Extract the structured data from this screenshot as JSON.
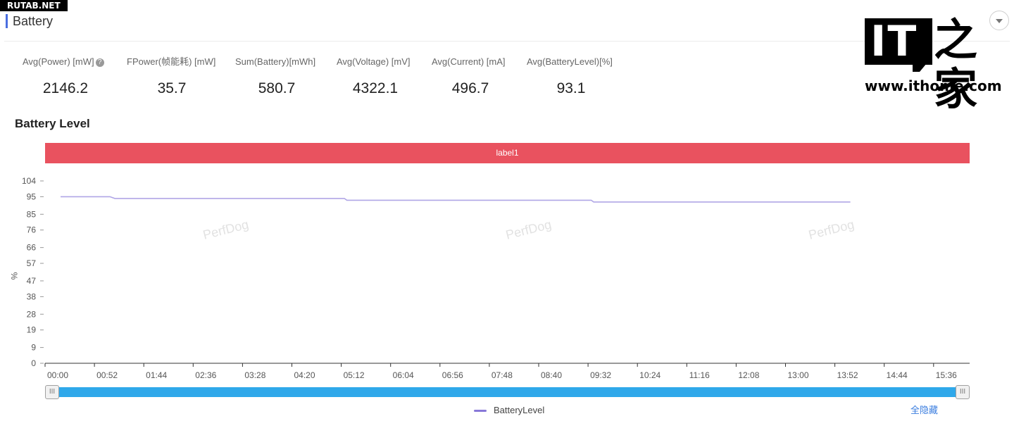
{
  "site_tag": "RUTAB.NET",
  "header": {
    "title": "Battery"
  },
  "logo": {
    "mark": "IT",
    "han": "之家",
    "url": "www.ithome.com"
  },
  "stats": [
    {
      "label": "Avg(Power) [mW]",
      "value": "2146.2",
      "help": "?"
    },
    {
      "label": "FPower(帧能耗) [mW]",
      "value": "35.7"
    },
    {
      "label": "Sum(Battery)[mWh]",
      "value": "580.7"
    },
    {
      "label": "Avg(Voltage) [mV]",
      "value": "4322.1"
    },
    {
      "label": "Avg(Current) [mA]",
      "value": "496.7"
    },
    {
      "label": "Avg(BatteryLevel)[%]",
      "value": "93.1"
    }
  ],
  "chart": {
    "title": "Battery Level",
    "band_label": "label1",
    "watermark": "PerfDog",
    "legend_color": "#8878d8",
    "hide_all_label": "全隐藏",
    "slider_handle_glyph": "III"
  },
  "chart_data": {
    "type": "line",
    "title": "Battery Level",
    "ylabel": "%",
    "xlabel": "",
    "ylim": [
      0,
      104
    ],
    "yticks": [
      "0",
      "9",
      "19",
      "28",
      "38",
      "47",
      "57",
      "66",
      "76",
      "85",
      "95",
      "104"
    ],
    "xticks": [
      "00:00",
      "00:52",
      "01:44",
      "02:36",
      "03:28",
      "04:20",
      "05:12",
      "06:04",
      "06:56",
      "07:48",
      "08:40",
      "09:32",
      "10:24",
      "11:16",
      "12:08",
      "13:00",
      "13:52",
      "14:44",
      "15:36"
    ],
    "xlim_minutes": [
      0,
      16.2
    ],
    "grid": false,
    "series": [
      {
        "name": "BatteryLevel",
        "color": "#b0a6e6",
        "x_minutes": [
          0.2,
          1.2,
          1.3,
          5.95,
          6.0,
          10.95,
          11.0,
          16.2
        ],
        "values": [
          95,
          95,
          94,
          94,
          93,
          93,
          92,
          92
        ]
      }
    ]
  }
}
